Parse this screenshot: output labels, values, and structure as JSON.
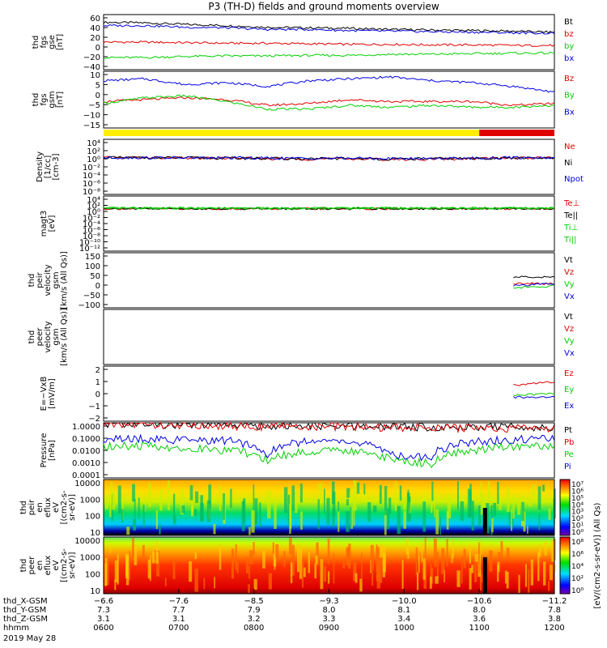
{
  "title": "P3 (TH-D) fields and ground moments overview",
  "colors": {
    "black": "#000000",
    "red": "#e00000",
    "green": "#00d000",
    "blue": "#0000e0",
    "yellow": "#ffee00",
    "white": "#ffffff"
  },
  "bars": [
    {
      "from": "0600",
      "to": "1100",
      "color": "#ffee00"
    },
    {
      "from": "1100",
      "to": "1200",
      "color": "#e00000"
    }
  ],
  "chart_data": [
    {
      "type": "line",
      "id": "fgs_gse",
      "ylabel": [
        "thd",
        "fgs",
        "gse",
        "[nT]"
      ],
      "yticks": [
        "60",
        "40",
        "20",
        "0",
        "−20",
        "−40"
      ],
      "ylim": [
        -40,
        60
      ],
      "log": false,
      "series": [
        {
          "name": "Bt",
          "color": "#000000",
          "values": [
            46,
            45,
            42,
            40,
            37,
            36,
            35,
            33,
            32,
            31,
            30,
            28
          ]
        },
        {
          "name": "bz",
          "color": "#e00000",
          "values": [
            10,
            10,
            9,
            8,
            8,
            7,
            6,
            6,
            5,
            5,
            4,
            4
          ]
        },
        {
          "name": "by",
          "color": "#00d000",
          "values": [
            -18,
            -18,
            -16,
            -15,
            -15,
            -14,
            -14,
            -12,
            -12,
            -11,
            -10,
            -10
          ]
        },
        {
          "name": "bx",
          "color": "#0000e0",
          "values": [
            40,
            40,
            37,
            36,
            33,
            33,
            31,
            30,
            29,
            28,
            27,
            26
          ]
        }
      ]
    },
    {
      "type": "line",
      "id": "fgs_gsm",
      "ylabel": [
        "thd",
        "fgs",
        "gsm",
        "[nT]"
      ],
      "yticks": [
        "10",
        "5",
        "0",
        "−5",
        "−10",
        "−15"
      ],
      "ylim": [
        -18,
        12
      ],
      "log": false,
      "series": [
        {
          "name": "Bz",
          "color": "#e00000",
          "values": [
            -4,
            -3,
            -2,
            -3,
            -6,
            -5,
            -3,
            -4,
            -4,
            -4,
            -6,
            -5
          ]
        },
        {
          "name": "By",
          "color": "#00d000",
          "values": [
            -5,
            -2,
            -1,
            -4,
            -8,
            -8,
            -6,
            -7,
            -6,
            -7,
            -7,
            -6
          ]
        },
        {
          "name": "Bx",
          "color": "#0000e0",
          "values": [
            7,
            8,
            5,
            6,
            4,
            7,
            8,
            9,
            7,
            6,
            4,
            1
          ]
        }
      ]
    },
    {
      "type": "line",
      "id": "density",
      "ylabel": [
        "Density",
        "[1/cc]",
        "[cm-3]"
      ],
      "yticks": [
        "10⁴",
        "10²",
        "10⁰",
        "10⁻²",
        "10⁻⁴",
        "10⁻⁶",
        "10⁻⁸"
      ],
      "ylim": [
        -8,
        4
      ],
      "log": true,
      "series": [
        {
          "name": "Ne",
          "color": "#e00000",
          "values": [
            1,
            1,
            0.8,
            0.8,
            0.6,
            0.5,
            0.6,
            0.4,
            0.5,
            0.6,
            0.9,
            1
          ]
        },
        {
          "name": "Ni",
          "color": "#000000",
          "values": [
            1,
            1,
            0.9,
            0.8,
            0.7,
            0.5,
            0.7,
            0.5,
            0.6,
            0.7,
            0.8,
            0.8
          ]
        },
        {
          "name": "Npot",
          "color": "#0000e0",
          "values": [
            1,
            1,
            0.9,
            0.9,
            0.8,
            0.7,
            0.8,
            0.6,
            0.7,
            0.8,
            1,
            1
          ]
        }
      ]
    },
    {
      "type": "line",
      "id": "temperature",
      "ylabel": [
        "magt3",
        "[eV]"
      ],
      "yticks": [
        "10⁴",
        "10²",
        "10⁰",
        "10⁻²",
        "10⁻⁴",
        "10⁻⁶",
        "10⁻⁸",
        "10⁻¹⁰",
        "10⁻¹²"
      ],
      "ylim": [
        -12,
        4
      ],
      "log": true,
      "series": [
        {
          "name": "Te⊥",
          "color": "#e00000",
          "values": [
            2,
            2,
            2,
            1.9,
            1.8,
            1.8,
            1.9,
            1.9,
            1.8,
            1.9,
            2,
            2
          ]
        },
        {
          "name": "Te||",
          "color": "#000000",
          "values": [
            2.2,
            2.2,
            2.1,
            2.1,
            2,
            2.1,
            2.1,
            2.1,
            2,
            2.1,
            2.2,
            2.2
          ]
        },
        {
          "name": "Ti⊥",
          "color": "#00d000",
          "values": [
            3,
            3,
            3,
            3,
            2.9,
            3,
            3,
            3,
            3,
            3,
            3,
            3
          ]
        },
        {
          "name": "Ti||",
          "color": "#00d000",
          "values": [
            3.1,
            3.1,
            3,
            3,
            3,
            3,
            3,
            3,
            3,
            3,
            3.1,
            3.1
          ]
        }
      ]
    },
    {
      "type": "line",
      "id": "peir_vel",
      "ylabel": [
        "thd",
        "peir",
        "velocity",
        "gsm",
        "[km/s (All Qs)]"
      ],
      "yticks": [
        "150",
        "100",
        "50",
        "0",
        "−50",
        "−100"
      ],
      "ylim": [
        -100,
        150
      ],
      "log": false,
      "series": [
        {
          "name": "Vt",
          "color": "#000000",
          "values": [
            null,
            null,
            null,
            null,
            null,
            null,
            null,
            null,
            null,
            null,
            40,
            40
          ]
        },
        {
          "name": "Vz",
          "color": "#e00000",
          "values": [
            null,
            null,
            null,
            null,
            null,
            null,
            null,
            null,
            null,
            null,
            10,
            10
          ]
        },
        {
          "name": "Vy",
          "color": "#00d000",
          "values": [
            null,
            null,
            null,
            null,
            null,
            null,
            null,
            null,
            null,
            null,
            -10,
            0
          ]
        },
        {
          "name": "Vx",
          "color": "#0000e0",
          "values": [
            null,
            null,
            null,
            null,
            null,
            null,
            null,
            null,
            null,
            null,
            0,
            10
          ]
        }
      ]
    },
    {
      "type": "line",
      "id": "peer_vel",
      "ylabel": [
        "thd",
        "peer",
        "velocity",
        "gsm",
        "[km/s (All Qs)]"
      ],
      "yticks": [],
      "ylim": [
        -100,
        150
      ],
      "log": false,
      "series": [
        {
          "name": "Vt",
          "color": "#000000",
          "values": []
        },
        {
          "name": "Vz",
          "color": "#e00000",
          "values": []
        },
        {
          "name": "Vy",
          "color": "#00d000",
          "values": []
        },
        {
          "name": "Vx",
          "color": "#0000e0",
          "values": []
        }
      ]
    },
    {
      "type": "line",
      "id": "efield",
      "ylabel": [
        "E=−VxB",
        "[mV/m]"
      ],
      "yticks": [
        "2",
        "1",
        "0",
        "−1",
        "−2"
      ],
      "ylim": [
        -2,
        2.6
      ],
      "log": false,
      "series": [
        {
          "name": "Ez",
          "color": "#e00000",
          "values": [
            null,
            null,
            null,
            null,
            null,
            null,
            null,
            null,
            null,
            null,
            1,
            1.3
          ]
        },
        {
          "name": "Ey",
          "color": "#00d000",
          "values": [
            null,
            null,
            null,
            null,
            null,
            null,
            null,
            null,
            null,
            null,
            0.2,
            0.3
          ]
        },
        {
          "name": "Ex",
          "color": "#0000e0",
          "values": [
            null,
            null,
            null,
            null,
            null,
            null,
            null,
            null,
            null,
            null,
            0,
            0
          ]
        }
      ]
    },
    {
      "type": "line",
      "id": "pressure",
      "ylabel": [
        "Pressure",
        "[nPa]"
      ],
      "yticks": [
        "1.0000",
        "0.1000",
        "0.0100",
        "0.0010",
        "0.0001"
      ],
      "ylim": [
        -4,
        0
      ],
      "log": true,
      "series": [
        {
          "name": "Pt",
          "color": "#000000",
          "values": [
            0.9,
            0.8,
            0.7,
            0.7,
            0.6,
            0.55,
            0.55,
            0.5,
            0.5,
            0.5,
            0.5,
            0.5
          ]
        },
        {
          "name": "Pb",
          "color": "#e00000",
          "values": [
            0.8,
            0.75,
            0.65,
            0.6,
            0.55,
            0.5,
            0.5,
            0.45,
            0.45,
            0.4,
            0.4,
            0.4
          ]
        },
        {
          "name": "Pe",
          "color": "#00d000",
          "values": [
            0.02,
            0.02,
            0.015,
            0.01,
            0.002,
            0.008,
            0.01,
            0.002,
            0.001,
            0.01,
            0.02,
            0.02
          ]
        },
        {
          "name": "Pi",
          "color": "#0000e0",
          "values": [
            0.06,
            0.07,
            0.05,
            0.05,
            0.005,
            0.05,
            0.04,
            0.005,
            0.003,
            0.04,
            0.06,
            0.07
          ]
        }
      ]
    },
    {
      "type": "heatmap",
      "id": "peir_spec",
      "ylabel": [
        "thd",
        "peir",
        "en",
        "eflux",
        "eV",
        "[(cm2-s-",
        "sr-eV)]"
      ],
      "yticks": [
        "10000",
        "1000",
        "100",
        "10"
      ],
      "ylim": [
        5,
        30000
      ],
      "colorbar": [
        "10⁷",
        "10⁶",
        "10⁵",
        "10⁴",
        "10³",
        "10²",
        "10¹",
        "10⁰"
      ]
    },
    {
      "type": "heatmap",
      "id": "peer_spec",
      "ylabel": [
        "thd",
        "peer",
        "en",
        "eflux",
        "eV",
        "[(cm2-s-",
        "sr-eV)]"
      ],
      "yticks": [
        "10000",
        "1000",
        "100",
        "10"
      ],
      "ylim": [
        5,
        30000
      ],
      "colorbar": [
        "10⁸",
        "10⁶",
        "10⁴",
        "10²",
        "10⁰"
      ]
    }
  ],
  "colorbar_label": "[eV/(cm2-s-sr-eV)] (All Qs)",
  "xaxis": {
    "rows": [
      {
        "label": "thd_X-GSM",
        "values": [
          "−6.6",
          "−7.6",
          "−8.5",
          "−9.3",
          "−10.0",
          "−10.6",
          "−11.2"
        ]
      },
      {
        "label": "thd_Y-GSM",
        "values": [
          "7.3",
          "7.7",
          "7.9",
          "8.0",
          "8.1",
          "8.0",
          "7.8"
        ]
      },
      {
        "label": "thd_Z-GSM",
        "values": [
          "3.1",
          "3.1",
          "3.2",
          "3.3",
          "3.4",
          "3.6",
          "3.8"
        ]
      },
      {
        "label": "hhmm",
        "values": [
          "0600",
          "0700",
          "0800",
          "0900",
          "1000",
          "1100",
          "1200"
        ]
      }
    ],
    "date": "2019 May 28"
  }
}
